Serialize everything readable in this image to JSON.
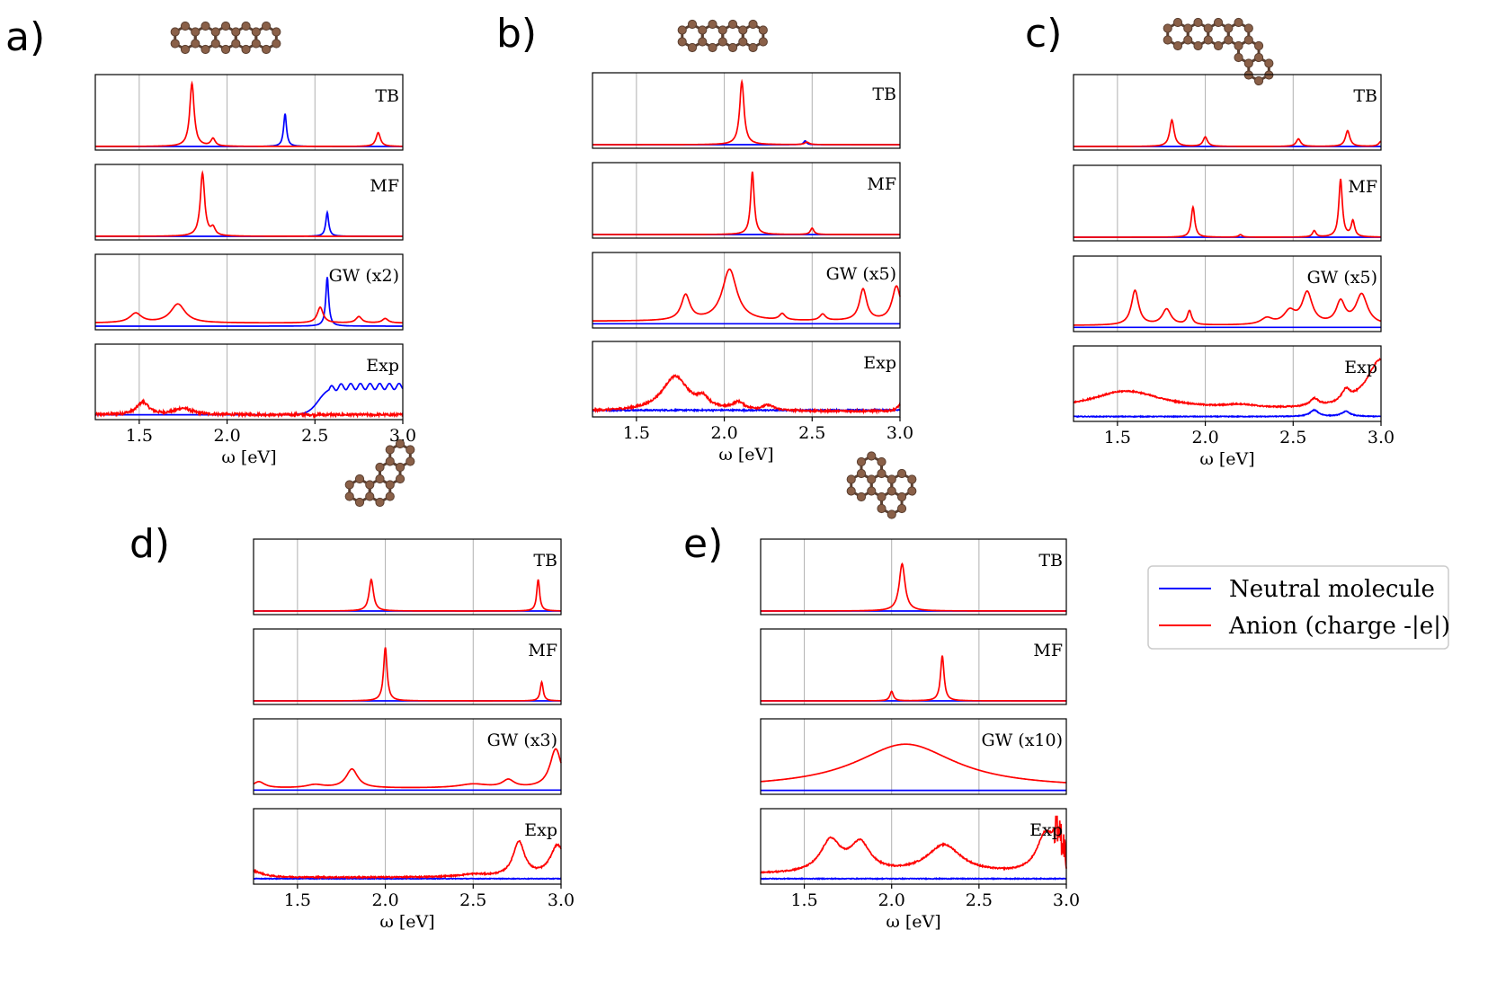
{
  "colors": {
    "neutral": "#0000ff",
    "anion": "#ff0000",
    "grid": "#b0b0b0",
    "atom": "#8a6048",
    "bond": "#5a3f30"
  },
  "legend": {
    "neutral": "Neutral molecule",
    "anion": "Anion (charge -|e|)"
  },
  "chart_data": [
    {
      "panel_label": "a)",
      "molecule": "pentacene",
      "type": "line",
      "xlabel": "ω [eV]",
      "xlim": [
        1.25,
        3.0
      ],
      "xticks": [
        "1.5",
        "2.0",
        "2.5",
        "3.0"
      ],
      "subplots": [
        {
          "label": "TB",
          "ymax": 1.0,
          "anion_peaks": [
            [
              1.8,
              1.0,
              0.015
            ],
            [
              1.92,
              0.12,
              0.015
            ],
            [
              2.86,
              0.22,
              0.015
            ]
          ],
          "neutral_peaks": [
            [
              2.33,
              0.52,
              0.01
            ]
          ]
        },
        {
          "label": "MF",
          "ymax": 1.0,
          "anion_peaks": [
            [
              1.86,
              1.0,
              0.015
            ],
            [
              1.92,
              0.12,
              0.015
            ]
          ],
          "neutral_peaks": [
            [
              2.57,
              0.38,
              0.01
            ]
          ]
        },
        {
          "label": "GW (x2)",
          "ymax": 1.0,
          "anion_peaks": [
            [
              1.48,
              0.15,
              0.04
            ],
            [
              1.72,
              0.3,
              0.05
            ],
            [
              2.53,
              0.25,
              0.02
            ],
            [
              2.75,
              0.1,
              0.02
            ],
            [
              2.9,
              0.07,
              0.02
            ]
          ],
          "anion_base": 0.05,
          "neutral_peaks": [
            [
              2.57,
              0.78,
              0.01
            ]
          ]
        },
        {
          "label": "Exp",
          "ymax": 1.0,
          "anion_peaks": [
            [
              1.52,
              0.2,
              0.04
            ],
            [
              1.75,
              0.1,
              0.06
            ]
          ],
          "anion_base": 0.02,
          "anion_noise": 0.02,
          "neutral_step": [
            2.52,
            0.45,
            0.03
          ],
          "neutral_oscill": [
            0.08,
            0.055,
            2.58
          ],
          "neutral_base": 0.02
        }
      ]
    },
    {
      "panel_label": "b)",
      "molecule": "tetracene",
      "type": "line",
      "xlabel": "ω [eV]",
      "xlim": [
        1.25,
        3.0
      ],
      "xticks": [
        "1.5",
        "2.0",
        "2.5",
        "3.0"
      ],
      "subplots": [
        {
          "label": "TB",
          "ymax": 1.0,
          "anion_peaks": [
            [
              2.1,
              1.0,
              0.015
            ],
            [
              2.47,
              0.04,
              0.015
            ]
          ],
          "neutral_peaks": [
            [
              2.46,
              0.06,
              0.01
            ]
          ]
        },
        {
          "label": "MF",
          "ymax": 1.0,
          "anion_peaks": [
            [
              2.16,
              1.0,
              0.012
            ],
            [
              2.5,
              0.1,
              0.012
            ]
          ],
          "neutral_peaks": []
        },
        {
          "label": "GW (x5)",
          "ymax": 1.0,
          "anion_peaks": [
            [
              1.78,
              0.4,
              0.03
            ],
            [
              2.03,
              0.82,
              0.05
            ],
            [
              2.33,
              0.1,
              0.02
            ],
            [
              2.56,
              0.1,
              0.02
            ],
            [
              2.79,
              0.5,
              0.025
            ],
            [
              2.98,
              0.55,
              0.03
            ]
          ],
          "anion_base": 0.05,
          "neutral_base": 0.01
        },
        {
          "label": "Exp",
          "ymax": 1.0,
          "anion_peaks": [
            [
              1.72,
              0.55,
              0.09
            ],
            [
              1.88,
              0.15,
              0.04
            ],
            [
              2.08,
              0.12,
              0.04
            ],
            [
              2.25,
              0.08,
              0.04
            ],
            [
              3.0,
              0.1,
              0.02
            ]
          ],
          "anion_base": 0.03,
          "anion_noise": 0.015,
          "neutral_base": 0.05,
          "neutral_noise": 0.01
        }
      ]
    },
    {
      "panel_label": "c)",
      "molecule": "benzo-tetracene",
      "type": "line",
      "xlabel": "ω [eV]",
      "xlim": [
        1.25,
        3.0
      ],
      "xticks": [
        "1.5",
        "2.0",
        "2.5",
        "3.0"
      ],
      "subplots": [
        {
          "label": "TB",
          "ymax": 1.0,
          "anion_peaks": [
            [
              1.81,
              0.42,
              0.015
            ],
            [
              2.0,
              0.15,
              0.015
            ],
            [
              2.53,
              0.12,
              0.015
            ],
            [
              2.81,
              0.25,
              0.015
            ],
            [
              3.0,
              0.08,
              0.015
            ]
          ],
          "neutral_peaks": []
        },
        {
          "label": "MF",
          "ymax": 1.0,
          "anion_peaks": [
            [
              1.93,
              0.48,
              0.012
            ],
            [
              2.2,
              0.04,
              0.012
            ],
            [
              2.62,
              0.1,
              0.012
            ],
            [
              2.77,
              0.92,
              0.012
            ],
            [
              2.84,
              0.25,
              0.012
            ]
          ],
          "neutral_peaks": []
        },
        {
          "label": "GW (x5)",
          "ymax": 1.0,
          "anion_peaks": [
            [
              1.6,
              0.55,
              0.025
            ],
            [
              1.78,
              0.25,
              0.03
            ],
            [
              1.91,
              0.22,
              0.015
            ],
            [
              2.35,
              0.1,
              0.04
            ],
            [
              2.48,
              0.2,
              0.04
            ],
            [
              2.58,
              0.5,
              0.035
            ],
            [
              2.77,
              0.35,
              0.03
            ],
            [
              2.89,
              0.48,
              0.04
            ]
          ],
          "anion_base": 0.04,
          "neutral_base": 0.01
        },
        {
          "label": "Exp",
          "ymax": 1.0,
          "anion_peaks": [
            [
              1.55,
              0.3,
              0.25
            ],
            [
              2.2,
              0.05,
              0.1
            ],
            [
              2.62,
              0.12,
              0.03
            ],
            [
              2.8,
              0.18,
              0.03
            ],
            [
              3.0,
              0.8,
              0.1
            ]
          ],
          "anion_base": 0.12,
          "anion_noise": 0.01,
          "neutral_peaks": [
            [
              2.62,
              0.1,
              0.03
            ],
            [
              2.8,
              0.08,
              0.03
            ]
          ],
          "neutral_base": 0.02,
          "neutral_noise": 0.006
        }
      ]
    },
    {
      "panel_label": "d)",
      "molecule": "chrysene-like",
      "type": "line",
      "xlabel": "ω [eV]",
      "xlim": [
        1.25,
        3.0
      ],
      "xticks": [
        "1.5",
        "2.0",
        "2.5",
        "3.0"
      ],
      "subplots": [
        {
          "label": "TB",
          "ymax": 1.0,
          "anion_peaks": [
            [
              1.92,
              0.5,
              0.015
            ],
            [
              2.87,
              0.5,
              0.01
            ]
          ],
          "neutral_peaks": []
        },
        {
          "label": "MF",
          "ymax": 1.0,
          "anion_peaks": [
            [
              2.0,
              0.85,
              0.012
            ],
            [
              2.89,
              0.3,
              0.01
            ]
          ],
          "neutral_peaks": []
        },
        {
          "label": "GW (x3)",
          "ymax": 1.0,
          "anion_peaks": [
            [
              1.28,
              0.1,
              0.04
            ],
            [
              1.6,
              0.05,
              0.06
            ],
            [
              1.81,
              0.3,
              0.04
            ],
            [
              2.5,
              0.06,
              0.1
            ],
            [
              2.7,
              0.12,
              0.04
            ],
            [
              2.97,
              0.62,
              0.04
            ]
          ],
          "anion_base": 0.04,
          "neutral_base": 0.01
        },
        {
          "label": "Exp",
          "ymax": 1.0,
          "anion_peaks": [
            [
              1.25,
              0.1,
              0.06
            ],
            [
              2.5,
              0.04,
              0.1
            ],
            [
              2.76,
              0.55,
              0.04
            ],
            [
              2.98,
              0.5,
              0.05
            ]
          ],
          "anion_base": 0.05,
          "anion_noise": 0.01,
          "neutral_base": 0.03,
          "neutral_noise": 0.005
        }
      ]
    },
    {
      "panel_label": "e)",
      "molecule": "dibenzo-phenanthrene",
      "type": "line",
      "xlabel": "ω [eV]",
      "xlim": [
        1.25,
        3.0
      ],
      "xticks": [
        "1.5",
        "2.0",
        "2.5",
        "3.0"
      ],
      "subplots": [
        {
          "label": "TB",
          "ymax": 1.0,
          "anion_peaks": [
            [
              2.06,
              0.75,
              0.02
            ]
          ],
          "neutral_peaks": []
        },
        {
          "label": "MF",
          "ymax": 1.0,
          "anion_peaks": [
            [
              2.0,
              0.15,
              0.012
            ],
            [
              2.29,
              0.72,
              0.012
            ]
          ],
          "neutral_peaks": []
        },
        {
          "label": "GW (x10)",
          "ymax": 1.0,
          "anion_peaks": [
            [
              2.08,
              0.7,
              0.35
            ]
          ],
          "anion_base": 0.04,
          "neutral_base": 0.005
        },
        {
          "label": "Exp",
          "ymax": 1.0,
          "anion_peaks": [
            [
              1.65,
              0.5,
              0.07
            ],
            [
              1.82,
              0.45,
              0.07
            ],
            [
              2.3,
              0.45,
              0.12
            ],
            [
              2.88,
              0.6,
              0.06
            ],
            [
              2.95,
              0.6,
              0.025
            ]
          ],
          "anion_base": 0.1,
          "anion_noise": 0.01,
          "anion_edge_noise": [
            2.93,
            0.35
          ],
          "neutral_base": 0.03,
          "neutral_noise": 0.006
        }
      ]
    }
  ]
}
